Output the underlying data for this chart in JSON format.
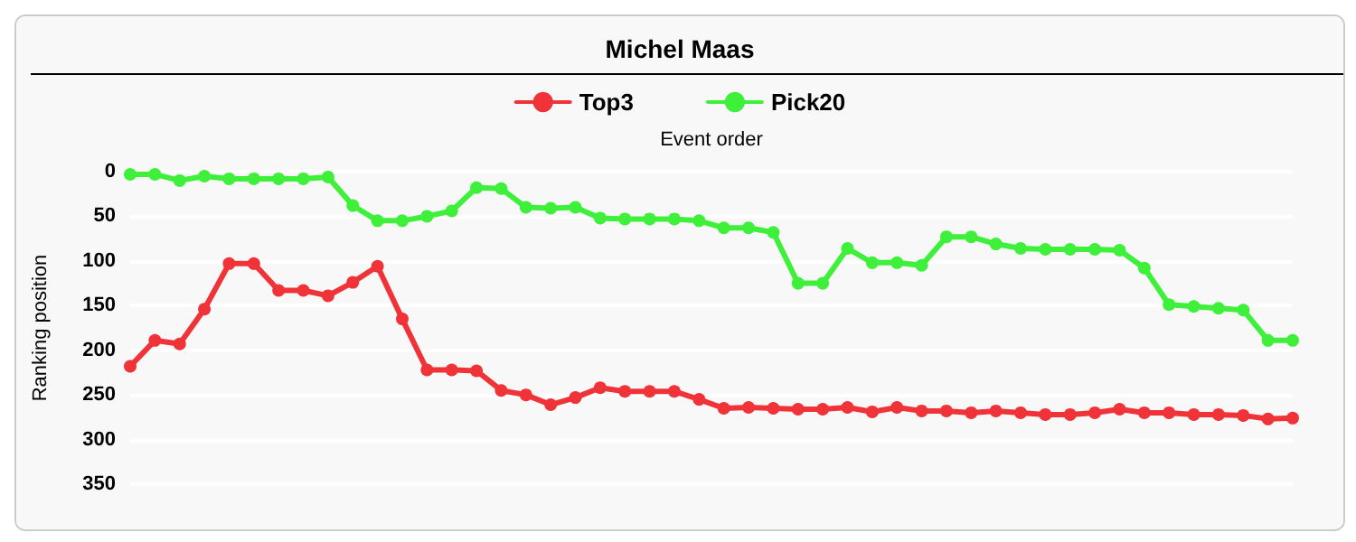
{
  "chart_data": {
    "type": "line",
    "title": "Michel Maas",
    "xlabel": "Event order",
    "ylabel": "Ranking position",
    "categories": [
      null,
      null,
      null,
      null,
      null,
      null,
      null,
      null,
      null,
      null,
      null,
      null,
      null,
      null,
      null,
      null,
      null,
      null,
      null,
      null,
      null,
      null,
      null,
      null,
      null,
      null,
      null,
      null,
      null,
      null,
      null,
      null,
      null,
      null,
      null,
      null,
      null,
      null,
      null,
      null,
      null,
      null,
      null,
      null,
      null,
      null,
      null,
      null
    ],
    "series": [
      {
        "name": "Top3",
        "color": "#f03338",
        "values": [
          218,
          189,
          193,
          154,
          103,
          103,
          133,
          133,
          139,
          124,
          106,
          165,
          222,
          222,
          223,
          245,
          250,
          261,
          253,
          242,
          246,
          246,
          246,
          255,
          265,
          264,
          265,
          266,
          266,
          264,
          269,
          264,
          268,
          268,
          270,
          268,
          270,
          272,
          272,
          270,
          266,
          270,
          270,
          272,
          272,
          273,
          277,
          276
        ]
      },
      {
        "name": "Pick20",
        "color": "#3ef03a",
        "values": [
          3,
          3,
          10,
          5,
          8,
          8,
          8,
          8,
          6,
          38,
          55,
          55,
          50,
          44,
          18,
          19,
          40,
          41,
          40,
          52,
          53,
          53,
          53,
          55,
          63,
          63,
          68,
          125,
          125,
          86,
          102,
          102,
          105,
          73,
          73,
          81,
          86,
          87,
          87,
          87,
          88,
          108,
          149,
          151,
          153,
          155,
          189,
          189
        ]
      }
    ],
    "ylim": [
      350,
      0
    ],
    "yticks": [
      0,
      50,
      100,
      150,
      200,
      250,
      300,
      350
    ],
    "grid": "y",
    "legend": "top",
    "tick_labels": "y",
    "marker": "circle",
    "line_style": "solid"
  }
}
